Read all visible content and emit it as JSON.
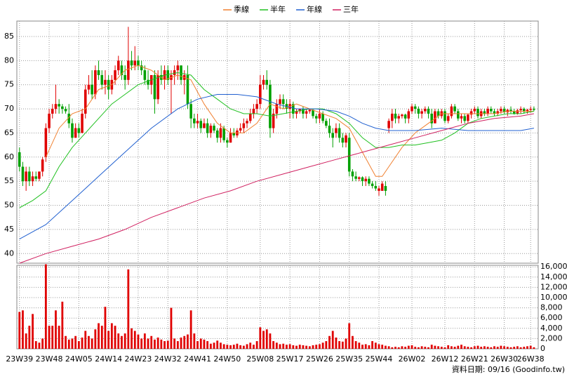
{
  "chart_data": {
    "type": "candlestick",
    "legend_position": "top",
    "source": "資料日期: 09/16 (Goodinfo.tw)",
    "xlim": [
      -0.8,
      157.3
    ],
    "xticks": [
      {
        "value": 0,
        "label": "23W39"
      },
      {
        "value": 9,
        "label": "23W48"
      },
      {
        "value": 18,
        "label": "24W05"
      },
      {
        "value": 27,
        "label": "24W14"
      },
      {
        "value": 36,
        "label": "24W23"
      },
      {
        "value": 45,
        "label": "24W32"
      },
      {
        "value": 54,
        "label": "24W41"
      },
      {
        "value": 63,
        "label": "24W50"
      },
      {
        "value": 73,
        "label": "25W08"
      },
      {
        "value": 82,
        "label": "25W17"
      },
      {
        "value": 91,
        "label": "25W26"
      },
      {
        "value": 100,
        "label": "25W35"
      },
      {
        "value": 109,
        "label": "25W44"
      },
      {
        "value": 119,
        "label": "26W02"
      },
      {
        "value": 129,
        "label": "26W12"
      },
      {
        "value": 138,
        "label": "26W21"
      },
      {
        "value": 147,
        "label": "26W30"
      },
      {
        "value": 155,
        "label": "26W38"
      }
    ],
    "ylim": [
      38,
      88.2
    ],
    "yticks": [
      40,
      45,
      50,
      55,
      60,
      65,
      70,
      75,
      80,
      85
    ],
    "grid": true,
    "up_color": "#e00000",
    "down_color": "#00a000",
    "ohlc": [
      [
        61,
        62,
        57,
        58
      ],
      [
        58,
        59,
        54,
        55
      ],
      [
        55,
        58,
        53,
        57
      ],
      [
        57,
        58,
        54,
        55
      ],
      [
        55,
        57,
        54,
        56
      ],
      [
        56,
        57,
        55,
        55.5
      ],
      [
        55.5,
        57,
        55,
        57
      ],
      [
        57,
        60,
        56,
        59.5
      ],
      [
        60,
        67,
        59,
        66
      ],
      [
        66,
        70,
        65,
        69
      ],
      [
        69,
        71,
        68,
        70
      ],
      [
        70,
        75,
        69,
        71
      ],
      [
        71,
        72,
        69,
        70.5
      ],
      [
        70.5,
        71,
        69,
        70
      ],
      [
        70,
        70.5,
        69,
        69.5
      ],
      [
        69,
        71,
        66,
        67
      ],
      [
        67,
        68,
        63,
        64
      ],
      [
        64,
        67,
        64,
        66
      ],
      [
        66,
        67,
        64,
        65
      ],
      [
        65,
        70,
        65,
        69
      ],
      [
        69,
        75,
        68,
        74
      ],
      [
        74,
        77,
        73,
        75
      ],
      [
        75,
        78,
        72,
        73
      ],
      [
        73,
        79,
        72,
        78
      ],
      [
        78,
        80,
        76,
        77
      ],
      [
        77,
        78,
        74,
        75
      ],
      [
        75,
        78,
        73,
        76
      ],
      [
        76,
        77,
        72,
        74
      ],
      [
        74,
        77,
        73,
        76
      ],
      [
        76,
        79,
        75,
        78
      ],
      [
        78,
        81,
        77,
        80
      ],
      [
        79,
        80,
        76,
        77
      ],
      [
        77,
        79,
        74,
        76
      ],
      [
        76,
        87,
        75,
        80
      ],
      [
        80,
        82,
        78,
        79
      ],
      [
        79,
        83,
        78,
        80
      ],
      [
        80,
        81,
        78,
        79
      ],
      [
        79,
        80,
        77,
        78
      ],
      [
        78,
        79,
        75,
        76
      ],
      [
        76,
        78,
        74,
        75
      ],
      [
        75,
        77,
        73,
        77
      ],
      [
        77,
        78,
        69,
        72
      ],
      [
        72,
        78,
        71,
        77
      ],
      [
        77,
        79,
        75,
        76
      ],
      [
        76,
        79,
        74,
        78
      ],
      [
        78,
        79,
        75,
        76
      ],
      [
        76,
        78,
        69,
        77
      ],
      [
        77,
        79,
        75,
        78
      ],
      [
        78,
        80,
        76,
        79
      ],
      [
        79,
        79,
        75,
        76
      ],
      [
        76,
        78,
        73,
        77
      ],
      [
        77,
        79,
        70,
        71
      ],
      [
        71,
        72,
        66,
        68
      ],
      [
        68,
        69,
        66,
        67
      ],
      [
        67,
        69,
        66,
        67.5
      ],
      [
        67.5,
        68,
        65,
        66
      ],
      [
        66,
        68,
        66,
        67
      ],
      [
        67,
        68,
        64,
        65
      ],
      [
        65,
        67,
        64,
        66.5
      ],
      [
        66.5,
        67,
        65,
        65.5
      ],
      [
        65.5,
        66,
        63,
        64
      ],
      [
        64,
        67,
        63,
        66
      ],
      [
        66,
        66.5,
        63,
        63.5
      ],
      [
        63.5,
        64,
        62,
        63
      ],
      [
        63,
        66,
        63,
        65
      ],
      [
        65,
        66,
        64,
        64.5
      ],
      [
        64.5,
        66,
        64,
        65.5
      ],
      [
        65.5,
        67,
        65,
        66
      ],
      [
        66,
        68,
        65,
        67
      ],
      [
        67,
        68,
        66,
        67.5
      ],
      [
        67.5,
        70,
        67,
        69
      ],
      [
        69,
        71,
        68,
        70
      ],
      [
        70,
        72,
        69,
        71
      ],
      [
        71,
        77,
        70,
        75
      ],
      [
        75,
        77,
        74,
        76
      ],
      [
        76,
        78,
        74,
        75
      ],
      [
        75,
        76,
        64,
        66
      ],
      [
        66,
        70,
        65,
        69
      ],
      [
        69,
        72,
        68,
        71
      ],
      [
        71,
        73,
        70,
        72
      ],
      [
        72,
        73,
        70,
        71
      ],
      [
        71,
        72,
        69,
        70
      ],
      [
        70,
        72,
        68,
        71
      ],
      [
        71,
        71.5,
        68,
        69
      ],
      [
        69,
        70,
        68,
        69.5
      ],
      [
        69.5,
        70,
        69,
        70
      ],
      [
        70,
        70.5,
        68,
        69
      ],
      [
        69,
        70,
        68,
        69.5
      ],
      [
        69.5,
        70,
        69,
        69.8
      ],
      [
        69.8,
        70,
        68,
        68.5
      ],
      [
        68.5,
        69,
        67,
        68
      ],
      [
        68,
        70,
        67,
        69
      ],
      [
        69,
        69.5,
        67,
        67.5
      ],
      [
        67.5,
        68,
        66,
        66.5
      ],
      [
        66.5,
        68,
        64,
        65
      ],
      [
        65,
        66,
        62,
        64
      ],
      [
        65,
        67,
        64,
        66
      ],
      [
        66,
        67,
        63,
        64
      ],
      [
        64,
        65,
        62,
        63
      ],
      [
        63,
        65,
        62,
        64.5
      ],
      [
        64,
        65,
        56,
        57
      ],
      [
        57,
        57.5,
        55,
        56
      ],
      [
        56,
        57,
        55,
        55.5
      ],
      [
        55.5,
        56,
        55,
        55.8
      ],
      [
        55.8,
        56,
        54,
        55
      ],
      [
        55,
        56,
        54,
        55.5
      ],
      [
        55.5,
        56,
        54,
        54.5
      ],
      [
        54.5,
        55,
        53.5,
        54
      ],
      [
        54,
        55,
        53,
        53.5
      ],
      [
        53,
        54,
        52,
        53.5
      ],
      [
        53,
        55,
        53,
        54.5
      ],
      [
        54,
        55,
        52,
        53
      ],
      [
        66,
        68,
        65,
        67.5
      ],
      [
        67.5,
        70,
        66,
        69
      ],
      [
        69,
        70,
        67,
        68
      ],
      [
        68,
        69,
        67,
        68.5
      ],
      [
        68.5,
        69,
        68,
        68.8
      ],
      [
        68.8,
        69,
        67,
        68
      ],
      [
        68,
        70,
        67,
        69.5
      ],
      [
        69.5,
        71,
        69,
        70.5
      ],
      [
        70.5,
        71,
        69,
        70
      ],
      [
        70,
        70.5,
        68,
        69
      ],
      [
        69,
        70,
        68,
        69.5
      ],
      [
        69.5,
        70.5,
        69,
        70
      ],
      [
        70,
        70.5,
        68,
        69
      ],
      [
        69,
        70,
        66,
        67
      ],
      [
        67,
        70,
        67,
        69.5
      ],
      [
        69.5,
        70,
        68,
        68.5
      ],
      [
        68.5,
        70,
        68,
        69.5
      ],
      [
        69.5,
        70,
        67,
        67.5
      ],
      [
        67.5,
        69,
        67,
        68.5
      ],
      [
        68.5,
        71,
        68,
        70.5
      ],
      [
        70.5,
        71,
        69,
        69.5
      ],
      [
        69.5,
        70,
        67.5,
        68
      ],
      [
        68,
        69,
        67,
        68.5
      ],
      [
        68.5,
        69,
        67,
        67.5
      ],
      [
        67.5,
        69,
        67,
        68.8
      ],
      [
        68.8,
        70,
        68,
        69.5
      ],
      [
        69.5,
        70.5,
        69,
        70
      ],
      [
        70,
        70.5,
        68,
        68.5
      ],
      [
        68.5,
        70,
        68,
        69.5
      ],
      [
        69.5,
        70,
        68.5,
        69
      ],
      [
        69,
        70.5,
        68.5,
        70
      ],
      [
        70,
        70.5,
        69,
        69.5
      ],
      [
        69.5,
        70,
        68.5,
        69
      ],
      [
        69,
        70,
        68.5,
        69.5
      ],
      [
        69.5,
        70.5,
        69,
        70
      ],
      [
        70,
        70.5,
        69,
        69.3
      ],
      [
        69.3,
        70,
        68.5,
        69.8
      ],
      [
        69.8,
        70.5,
        69,
        69.5
      ],
      [
        69.5,
        70,
        68.8,
        69
      ],
      [
        69,
        70,
        68.8,
        69.7
      ],
      [
        69.7,
        70.5,
        69,
        70
      ],
      [
        70,
        70.3,
        69,
        69.4
      ],
      [
        69.4,
        70,
        69,
        69.8
      ],
      [
        69.8,
        70.5,
        69.2,
        70
      ],
      [
        70,
        70.5,
        69.5,
        69.8
      ]
    ],
    "series": [
      {
        "name": "季線",
        "color": "#f08030",
        "x": [
          8,
          12,
          16,
          20,
          24,
          28,
          32,
          36,
          40,
          44,
          48,
          52,
          56,
          60,
          64,
          68,
          72,
          76,
          80,
          84,
          88,
          92,
          96,
          100,
          104,
          108,
          110,
          112,
          116,
          120,
          124,
          128,
          132,
          136,
          140,
          144,
          148,
          152,
          156
        ],
        "values": [
          60,
          66,
          69,
          70,
          74,
          75,
          78,
          79,
          78,
          76,
          77,
          76,
          71,
          67,
          65,
          65,
          67,
          71,
          70,
          71,
          70,
          69,
          68,
          66,
          61,
          56,
          56,
          58,
          62,
          65,
          67,
          69,
          69,
          69,
          69,
          69,
          69.5,
          69.5,
          69.5
        ]
      },
      {
        "name": "半年",
        "color": "#20c020",
        "x": [
          0,
          4,
          8,
          12,
          16,
          20,
          24,
          28,
          32,
          36,
          40,
          44,
          48,
          52,
          56,
          60,
          64,
          68,
          72,
          76,
          80,
          84,
          88,
          92,
          96,
          100,
          104,
          108,
          112,
          116,
          120,
          124,
          128,
          132,
          136,
          140,
          144,
          148,
          152,
          156
        ],
        "values": [
          49.5,
          51,
          53,
          58,
          62,
          65,
          68,
          71,
          73,
          75,
          76,
          77,
          77.5,
          77,
          74,
          72,
          70,
          69,
          69,
          68.5,
          69,
          69.5,
          70,
          70,
          69,
          67,
          64,
          62,
          62,
          62.5,
          62.5,
          63,
          63.5,
          65,
          67,
          68,
          68.5,
          69,
          69,
          69.5
        ]
      },
      {
        "name": "年線",
        "color": "#2060d0",
        "x": [
          0,
          8,
          16,
          24,
          32,
          40,
          48,
          54,
          60,
          66,
          72,
          78,
          84,
          90,
          96,
          100,
          104,
          108,
          112,
          120,
          128,
          136,
          144,
          152,
          156
        ],
        "values": [
          43,
          46,
          51,
          56,
          61,
          66,
          70,
          72,
          73,
          73,
          72.5,
          71,
          70,
          70,
          69.5,
          68.5,
          67,
          66,
          65.5,
          65.5,
          66,
          65.5,
          65.5,
          65.5,
          66
        ]
      },
      {
        "name": "三年",
        "color": "#d02060",
        "x": [
          0,
          8,
          16,
          24,
          32,
          40,
          48,
          56,
          64,
          72,
          80,
          88,
          96,
          104,
          112,
          120,
          128,
          136,
          144,
          152,
          156
        ],
        "values": [
          38,
          40,
          41.5,
          43,
          45,
          47.5,
          49.5,
          51.5,
          53,
          55,
          56.5,
          58,
          59.5,
          61,
          62.5,
          64,
          65.5,
          67,
          68,
          68.5,
          69
        ]
      }
    ],
    "volume": {
      "color": "#e00000",
      "ylim": [
        0,
        16300
      ],
      "yticks": [
        0,
        {
          "value": 2000,
          "label": "2,000"
        },
        {
          "value": 4000,
          "label": "4,000"
        },
        {
          "value": 6000,
          "label": "6,000"
        },
        {
          "value": 8000,
          "label": "8,000"
        },
        {
          "value": 10000,
          "label": "10,000"
        },
        {
          "value": 12000,
          "label": "12,000"
        },
        {
          "value": 14000,
          "label": "14,000"
        },
        {
          "value": 16000,
          "label": "16,000"
        }
      ],
      "values": [
        7200,
        7500,
        3000,
        4500,
        6800,
        1500,
        1200,
        2000,
        16500,
        4500,
        4500,
        7500,
        4500,
        9200,
        2500,
        1800,
        2000,
        2500,
        1500,
        2200,
        3500,
        2500,
        2000,
        3800,
        5000,
        4500,
        8200,
        3500,
        5000,
        4500,
        3000,
        2500,
        3000,
        15500,
        4000,
        3500,
        2800,
        2000,
        3000,
        2000,
        2500,
        1800,
        2200,
        1800,
        1500,
        1600,
        8000,
        2000,
        1500,
        2200,
        2500,
        2800,
        7500,
        3000,
        1500,
        2000,
        1800,
        1500,
        1000,
        1200,
        1600,
        1200,
        900,
        800,
        700,
        800,
        1000,
        700,
        600,
        900,
        1200,
        800,
        1500,
        4200,
        3500,
        3800,
        3000,
        1500,
        1200,
        900,
        1000,
        800,
        900,
        700,
        600,
        800,
        700,
        600,
        500,
        700,
        800,
        900,
        1200,
        1500,
        2500,
        3500,
        2200,
        1500,
        1400,
        2000,
        5000,
        2500,
        1500,
        1200,
        800,
        900,
        700,
        1500,
        1200,
        900,
        800,
        600,
        500,
        300,
        400,
        300,
        500,
        400,
        600,
        700,
        400,
        300,
        500,
        400,
        300,
        800,
        600,
        500,
        400,
        300,
        700,
        500,
        400,
        600,
        800,
        500,
        400,
        300,
        500,
        600,
        400,
        500,
        400,
        300,
        500,
        400,
        600,
        500,
        400,
        300,
        400,
        500,
        300,
        400,
        500,
        600,
        300
      ]
    }
  }
}
